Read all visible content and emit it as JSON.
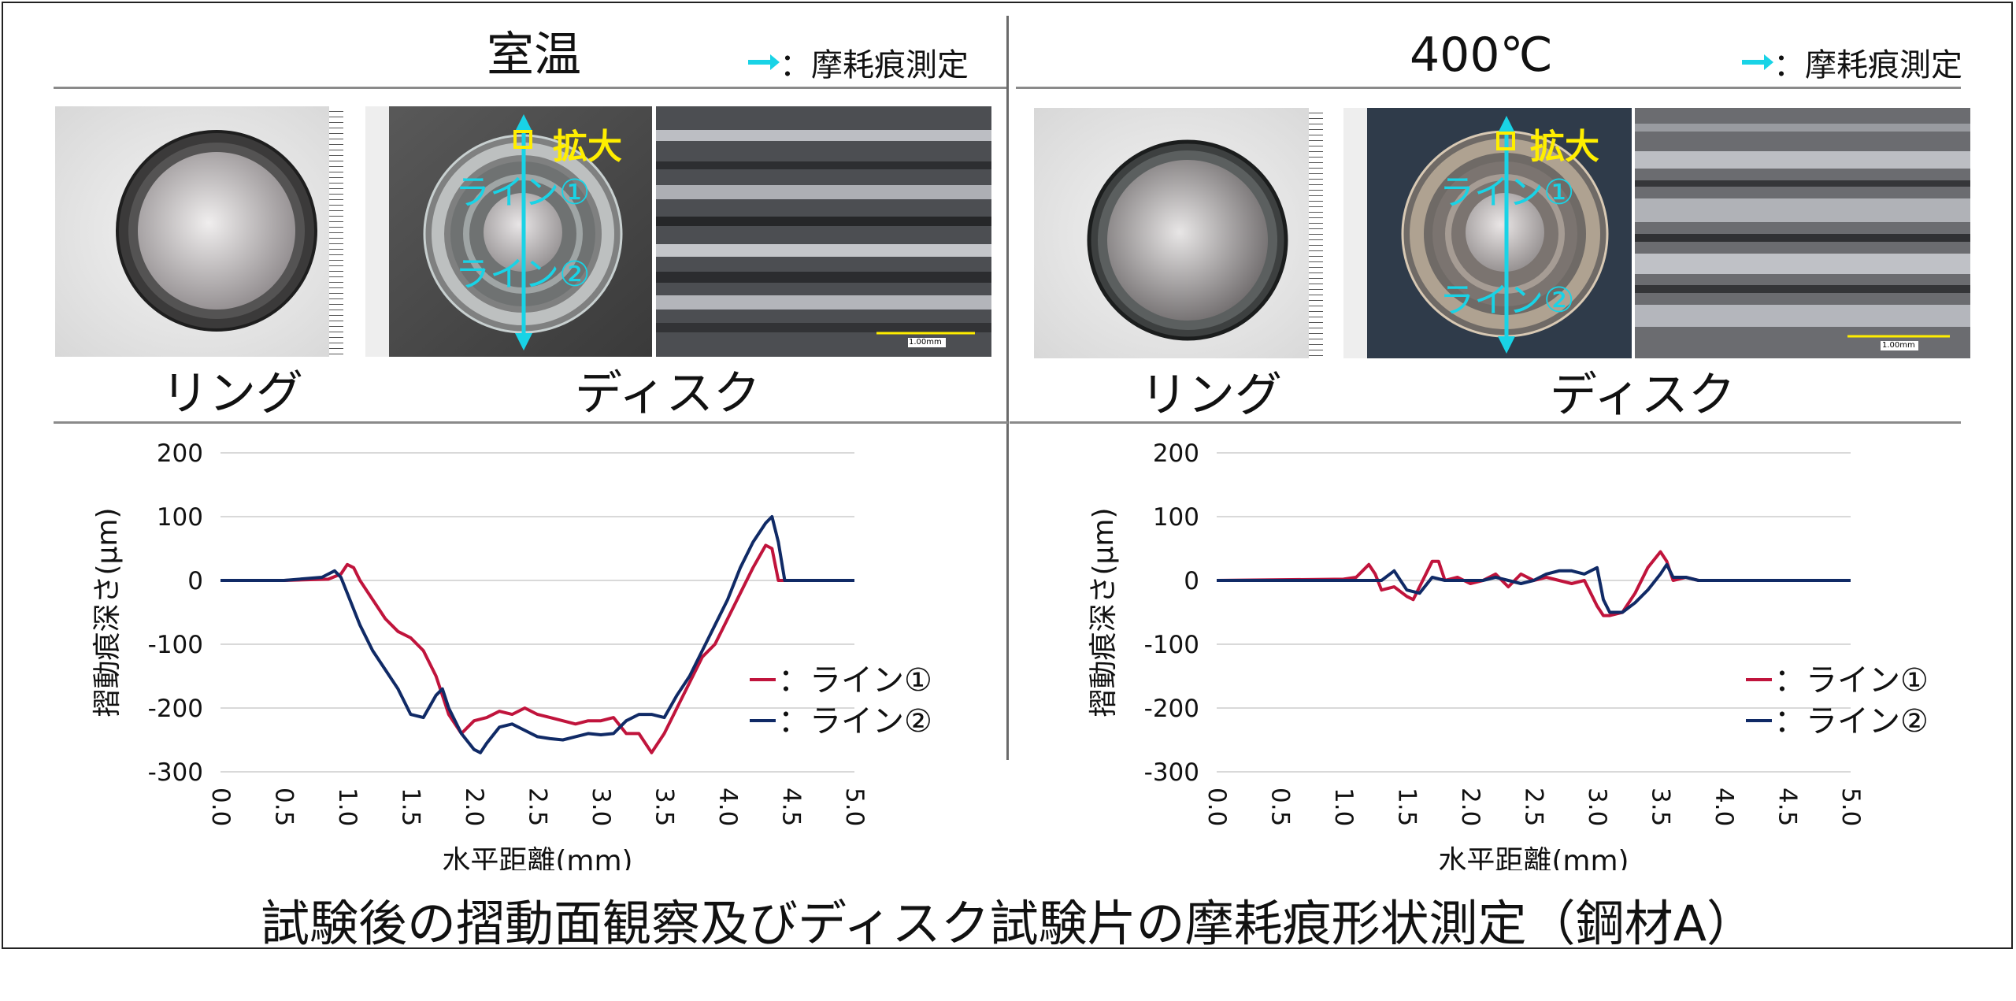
{
  "header": {
    "left_title": "室温",
    "right_title": "400℃",
    "legend_text": "：摩耗痕測定"
  },
  "photos": {
    "ring_label": "リング",
    "disk_label": "ディスク",
    "enlarge_label": "拡大",
    "line1_label": "ライン①",
    "line2_label": "ライン②",
    "scale_text": "1.00mm"
  },
  "footer": {
    "title": "試験後の摺動面観察及びディスク試験片の摩耗痕形状測定（鋼材A）"
  },
  "colors": {
    "line1": "#c0143c",
    "line2": "#102a66",
    "cyan": "#19d3e6",
    "yellow": "#ffee00"
  },
  "chart_data": [
    {
      "type": "line",
      "panel": "室温",
      "xlabel": "水平距離(mm)",
      "ylabel": "摺動痕深さ(μm)",
      "xlim": [
        0,
        5
      ],
      "ylim": [
        -300,
        200
      ],
      "xticks": [
        "0.0",
        "0.5",
        "1.0",
        "1.5",
        "2.0",
        "2.5",
        "3.0",
        "3.5",
        "4.0",
        "4.5",
        "5.0"
      ],
      "yticks": [
        "200",
        "100",
        "0",
        "-100",
        "-200",
        "-300"
      ],
      "grid": true,
      "legend": "right",
      "series": [
        {
          "name": "：ライン①",
          "x": [
            0,
            0.5,
            0.85,
            0.95,
            1.0,
            1.05,
            1.1,
            1.2,
            1.3,
            1.4,
            1.5,
            1.6,
            1.7,
            1.8,
            1.9,
            2.0,
            2.1,
            2.2,
            2.3,
            2.4,
            2.5,
            2.6,
            2.7,
            2.8,
            2.9,
            3.0,
            3.1,
            3.2,
            3.3,
            3.4,
            3.5,
            3.6,
            3.7,
            3.8,
            3.9,
            4.0,
            4.1,
            4.2,
            4.3,
            4.35,
            4.4,
            4.5,
            5.0
          ],
          "y": [
            0,
            0,
            2,
            10,
            25,
            20,
            0,
            -30,
            -60,
            -80,
            -90,
            -110,
            -150,
            -210,
            -240,
            -220,
            -215,
            -205,
            -210,
            -200,
            -210,
            -215,
            -220,
            -225,
            -220,
            -220,
            -215,
            -240,
            -240,
            -270,
            -240,
            -200,
            -160,
            -120,
            -100,
            -60,
            -20,
            20,
            55,
            50,
            0,
            0,
            0
          ]
        },
        {
          "name": "：ライン②",
          "x": [
            0,
            0.5,
            0.8,
            0.85,
            0.9,
            0.95,
            1.0,
            1.1,
            1.2,
            1.3,
            1.4,
            1.5,
            1.6,
            1.7,
            1.75,
            1.8,
            1.9,
            2.0,
            2.05,
            2.1,
            2.2,
            2.3,
            2.4,
            2.5,
            2.6,
            2.7,
            2.8,
            2.9,
            3.0,
            3.1,
            3.2,
            3.3,
            3.4,
            3.5,
            3.6,
            3.7,
            3.8,
            3.9,
            4.0,
            4.1,
            4.2,
            4.3,
            4.35,
            4.4,
            4.45,
            4.5,
            5.0
          ],
          "y": [
            0,
            0,
            5,
            10,
            15,
            5,
            -20,
            -70,
            -110,
            -140,
            -170,
            -210,
            -215,
            -180,
            -170,
            -200,
            -240,
            -265,
            -270,
            -255,
            -230,
            -225,
            -235,
            -245,
            -248,
            -250,
            -245,
            -240,
            -242,
            -240,
            -220,
            -210,
            -210,
            -215,
            -180,
            -150,
            -110,
            -70,
            -30,
            20,
            60,
            90,
            100,
            60,
            0,
            0,
            0
          ]
        }
      ]
    },
    {
      "type": "line",
      "panel": "400℃",
      "xlabel": "水平距離(mm)",
      "ylabel": "摺動痕深さ(μm)",
      "xlim": [
        0,
        5
      ],
      "ylim": [
        -300,
        200
      ],
      "xticks": [
        "0.0",
        "0.5",
        "1.0",
        "1.5",
        "2.0",
        "2.5",
        "3.0",
        "3.5",
        "4.0",
        "4.5",
        "5.0"
      ],
      "yticks": [
        "200",
        "100",
        "0",
        "-100",
        "-200",
        "-300"
      ],
      "grid": true,
      "legend": "right",
      "series": [
        {
          "name": "：ライン①",
          "x": [
            0,
            1.0,
            1.1,
            1.2,
            1.25,
            1.3,
            1.4,
            1.5,
            1.55,
            1.6,
            1.7,
            1.75,
            1.8,
            1.9,
            2.0,
            2.1,
            2.2,
            2.3,
            2.4,
            2.5,
            2.6,
            2.7,
            2.8,
            2.9,
            2.95,
            3.0,
            3.05,
            3.1,
            3.2,
            3.3,
            3.4,
            3.5,
            3.55,
            3.6,
            3.7,
            3.8,
            4.0,
            5.0
          ],
          "y": [
            0,
            2,
            5,
            25,
            10,
            -15,
            -10,
            -25,
            -30,
            -10,
            30,
            30,
            0,
            5,
            -5,
            0,
            10,
            -10,
            10,
            0,
            5,
            0,
            -5,
            0,
            -20,
            -40,
            -55,
            -55,
            -50,
            -20,
            20,
            45,
            30,
            0,
            5,
            0,
            0,
            0
          ]
        },
        {
          "name": "：ライン②",
          "x": [
            0,
            1.0,
            1.2,
            1.3,
            1.4,
            1.45,
            1.5,
            1.6,
            1.7,
            1.8,
            1.9,
            2.0,
            2.1,
            2.2,
            2.3,
            2.4,
            2.5,
            2.6,
            2.7,
            2.8,
            2.9,
            3.0,
            3.05,
            3.1,
            3.2,
            3.3,
            3.4,
            3.5,
            3.55,
            3.6,
            3.7,
            3.8,
            4.0,
            5.0
          ],
          "y": [
            0,
            0,
            0,
            0,
            15,
            0,
            -15,
            -20,
            5,
            0,
            0,
            0,
            0,
            5,
            0,
            -5,
            0,
            10,
            15,
            15,
            10,
            20,
            -30,
            -50,
            -50,
            -35,
            -15,
            10,
            25,
            5,
            5,
            0,
            0,
            0
          ]
        }
      ]
    }
  ]
}
